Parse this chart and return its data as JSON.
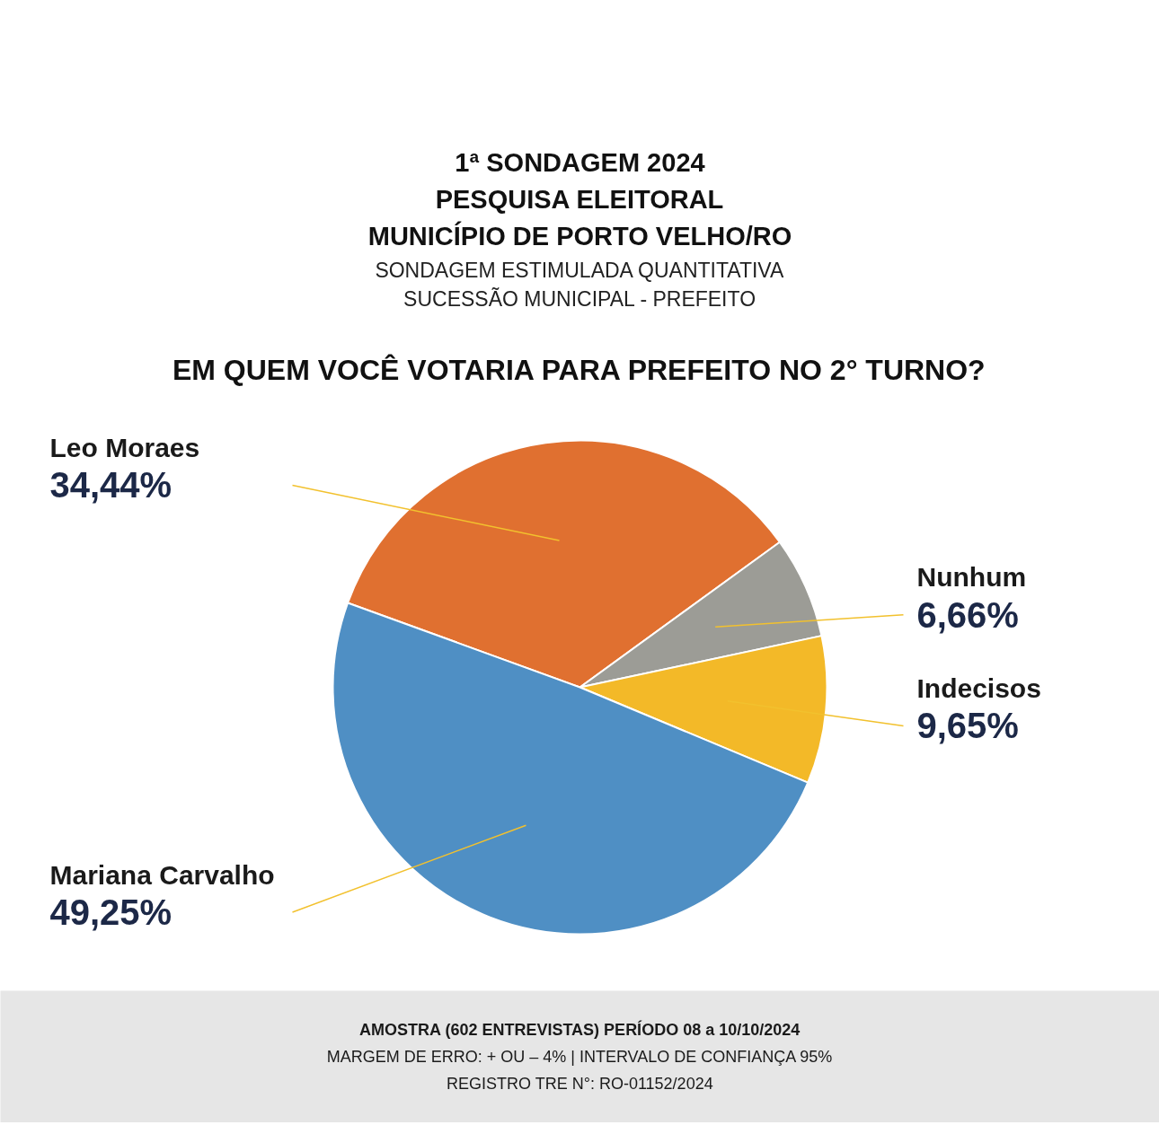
{
  "chart_data": {
    "type": "pie",
    "title": "1ª SONDAGEM 2024\nPESQUISA ELEITORAL\nMUNICÍPIO DE PORTO VELHO/RO",
    "subtitle": "SONDAGEM ESTIMULADA QUANTITATIVA\nSUCESSÃO MUNICIPAL - PREFEITO",
    "annotations": [
      "EM QUEM VOCÊ VOTARIA PARA PREFEITO NO 2° TURNO?",
      "AMOSTRA (602 ENTREVISTAS) PERÍODO 08 a 10/10/2024",
      "MARGEM DE ERRO: + OU – 4% | INTERVALO DE CONFIANÇA 95%",
      "REGISTRO TRE N°: RO-01152/2024"
    ],
    "categories": [
      "Leo Moraes",
      "Nunhum",
      "Indecisos",
      "Mariana Carvalho"
    ],
    "values": [
      34.44,
      6.66,
      9.65,
      49.25
    ],
    "colors": [
      "#e07030",
      "#9c9c96",
      "#f3b928",
      "#4f8fc4"
    ],
    "value_labels": [
      "34,44%",
      "6,66%",
      "9,65%",
      "49,25%"
    ]
  }
}
